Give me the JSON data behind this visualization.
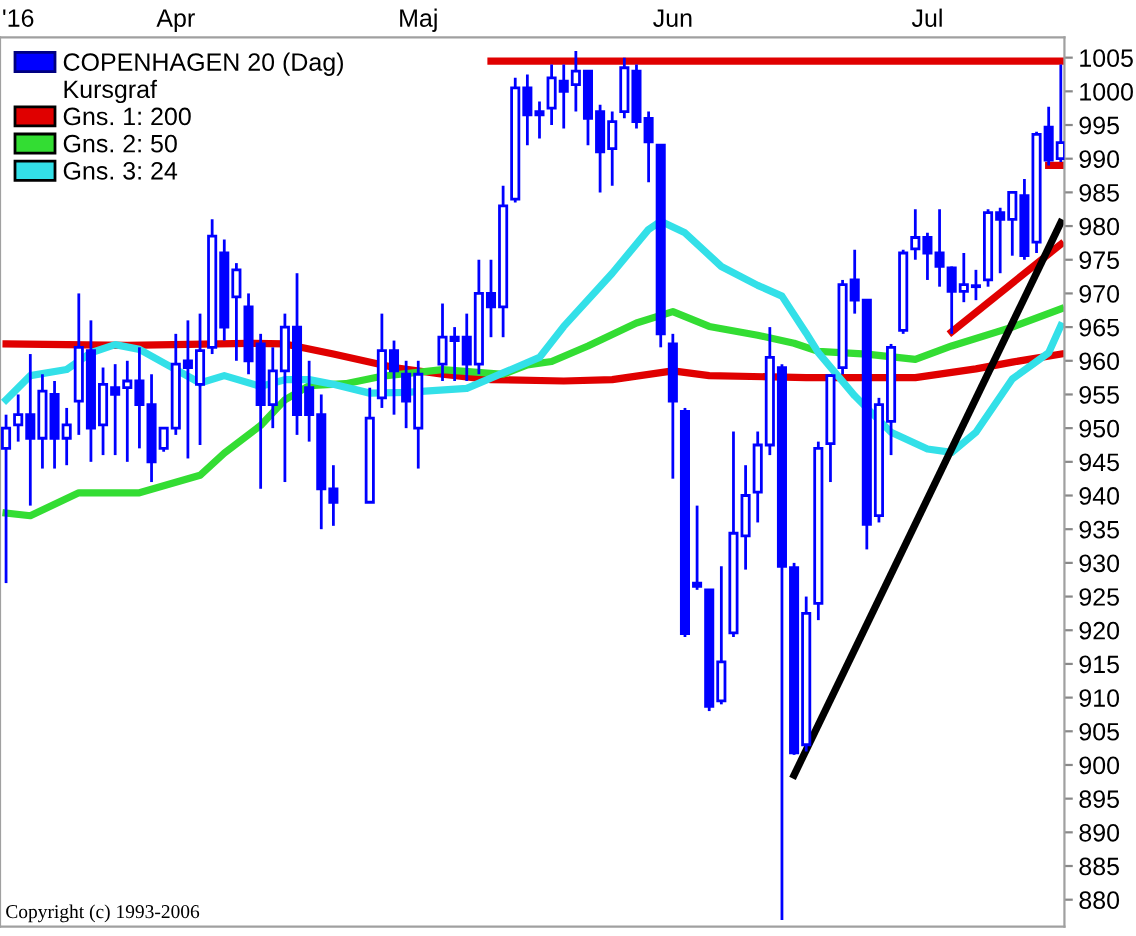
{
  "chart_data": {
    "type": "candlestick",
    "annotations": [
      "Kursgraf",
      "Copyright (c) 1993-2006"
    ],
    "categories": [
      null,
      "'16",
      null,
      null,
      null,
      null,
      null,
      null,
      null,
      null,
      null,
      null,
      null,
      null,
      "Apr",
      null,
      null,
      null,
      null,
      null,
      null,
      null,
      null,
      null,
      null,
      null,
      null,
      null,
      null,
      null,
      null,
      null,
      null,
      null,
      "Maj",
      null,
      null,
      null,
      null,
      null,
      null,
      null,
      null,
      null,
      null,
      null,
      null,
      null,
      null,
      null,
      null,
      null,
      null,
      null,
      null,
      "Jun",
      null,
      null,
      null,
      null,
      null,
      null,
      null,
      null,
      null,
      null,
      null,
      null,
      null,
      null,
      null,
      null,
      null,
      null,
      null,
      null,
      "Jul",
      null,
      null,
      null,
      null,
      null,
      null,
      null,
      null,
      null,
      null,
      null
    ],
    "ylim": [
      876,
      1008
    ],
    "yticks": [
      880,
      885,
      890,
      895,
      900,
      905,
      910,
      915,
      920,
      925,
      930,
      935,
      940,
      945,
      950,
      955,
      960,
      965,
      970,
      975,
      980,
      985,
      990,
      995,
      1000,
      1005
    ],
    "legend": "top left",
    "grid": false,
    "series": [
      {
        "type": "candlestick",
        "name": "COPENHAGEN 20 (Dag)",
        "color": "#0000ff",
        "ohlc": [
          [
            947,
            952,
            927,
            950
          ],
          [
            950.5,
            955,
            948,
            952
          ],
          [
            952,
            961,
            938.5,
            948.5
          ],
          [
            948.5,
            958,
            944,
            955.5
          ],
          [
            955,
            957,
            944,
            948.5
          ],
          [
            948.5,
            953,
            944.5,
            950.5
          ],
          [
            954,
            970,
            949,
            962
          ],
          [
            961.5,
            966,
            945,
            950
          ],
          [
            950.5,
            959,
            946,
            956.5
          ],
          [
            956,
            959.5,
            946,
            955
          ],
          [
            956,
            960,
            945,
            957
          ],
          [
            957,
            962,
            947,
            953.5
          ],
          [
            953.5,
            958,
            942,
            945
          ],
          [
            947,
            950,
            946.5,
            950
          ],
          [
            950,
            964,
            949,
            959.5
          ],
          [
            960,
            966,
            945.5,
            959
          ],
          [
            956.5,
            967,
            947.5,
            961.5
          ],
          [
            962,
            981,
            961,
            978.5
          ],
          [
            976,
            978,
            963,
            965
          ],
          [
            969.5,
            974.5,
            960,
            973.5
          ],
          [
            968,
            970,
            958,
            960
          ],
          [
            962.5,
            964,
            941,
            953.5
          ],
          [
            953.5,
            962,
            950,
            958.5
          ],
          [
            958.5,
            967,
            942,
            965
          ],
          [
            965,
            973,
            949,
            952
          ],
          [
            956,
            960,
            948,
            952
          ],
          [
            952,
            955,
            935,
            941
          ],
          [
            941,
            944.5,
            935.5,
            939
          ],
          null,
          null,
          [
            939,
            956,
            939,
            951.5
          ],
          [
            954.5,
            967,
            953,
            961.5
          ],
          [
            961.5,
            963,
            952,
            958.5
          ],
          [
            958,
            960,
            950,
            954
          ],
          [
            950,
            960,
            944,
            958
          ],
          null,
          [
            959.5,
            968.5,
            957,
            963.5
          ],
          [
            963.5,
            965,
            957,
            963
          ],
          [
            963.5,
            967,
            957,
            959.5
          ],
          [
            959.5,
            975,
            958,
            970
          ],
          [
            970,
            975,
            963.5,
            968
          ],
          [
            968,
            986,
            963.5,
            983
          ],
          [
            984,
            1002,
            983.5,
            1000.5
          ],
          [
            1000.5,
            1002.5,
            992,
            996.5
          ],
          [
            997,
            998.5,
            993,
            996.5
          ],
          [
            997.5,
            1004,
            995,
            1002
          ],
          [
            1001.5,
            1004,
            994.5,
            1000
          ],
          [
            1001,
            1006,
            997,
            1003
          ],
          [
            1003,
            1003,
            992,
            996
          ],
          [
            997,
            998,
            985,
            991
          ],
          [
            991.5,
            997,
            986,
            995.5
          ],
          [
            997,
            1005,
            996,
            1003.5
          ],
          [
            1003,
            1004,
            994.5,
            995.5
          ],
          [
            996,
            997,
            986.5,
            992.5
          ],
          [
            992,
            992,
            962,
            964
          ],
          [
            962.5,
            964,
            942.5,
            954
          ],
          [
            952.5,
            953,
            919,
            919.5
          ],
          [
            927,
            938.5,
            926,
            926.5
          ],
          [
            926,
            926,
            908,
            908.7
          ],
          [
            909.5,
            929.5,
            909,
            915.3
          ],
          [
            919.6,
            949.5,
            919,
            934.4
          ],
          [
            934,
            944.5,
            929,
            940
          ],
          [
            940.5,
            949.5,
            936,
            947.5
          ],
          [
            947.5,
            965,
            946,
            960.5
          ],
          [
            959,
            959.5,
            877,
            929.5
          ],
          [
            929.3,
            930,
            901.5,
            901.8
          ],
          [
            903,
            925,
            902,
            922.5
          ],
          [
            924,
            948,
            921.5,
            947
          ],
          [
            947.7,
            958,
            942,
            957.8
          ],
          [
            959,
            972,
            958,
            971.3
          ],
          [
            972,
            976.5,
            967,
            969
          ],
          [
            969,
            969,
            932,
            935.7
          ],
          [
            937,
            954.5,
            936,
            953.5
          ],
          [
            951,
            962.5,
            946,
            962
          ],
          [
            964.5,
            976.5,
            964,
            976
          ],
          [
            976.6,
            982.5,
            975,
            978.3
          ],
          [
            978.3,
            979,
            972,
            976
          ],
          [
            976,
            982.5,
            971,
            974
          ],
          [
            973.8,
            974,
            964,
            970.3
          ],
          [
            970.3,
            976,
            968.7,
            971.3
          ],
          [
            971,
            973.5,
            969,
            971
          ],
          [
            972,
            982.5,
            971,
            982
          ],
          [
            982,
            982.7,
            973,
            981
          ],
          [
            981,
            985,
            975.6,
            985
          ],
          [
            984.5,
            987,
            975,
            975.6
          ],
          [
            977.6,
            994,
            976,
            993.6
          ],
          [
            994.7,
            997.7,
            989,
            989.8
          ],
          [
            990,
            1004,
            989.5,
            992.4
          ]
        ]
      },
      {
        "type": "line",
        "name": "Gns. 1: 200",
        "color": "#e00000",
        "values": [
          962.5,
          null,
          null,
          null,
          null,
          null,
          null,
          null,
          null,
          null,
          962.3,
          null,
          null,
          null,
          null,
          null,
          null,
          null,
          null,
          null,
          962.6,
          null,
          null,
          962.5,
          null,
          null,
          null,
          961,
          null,
          null,
          null,
          null,
          959,
          null,
          null,
          null,
          958,
          null,
          null,
          null,
          957.2,
          null,
          null,
          null,
          null,
          null,
          957,
          null,
          null,
          null,
          957.2,
          null,
          null,
          null,
          null,
          958.5,
          null,
          null,
          957.8,
          null,
          null,
          null,
          null,
          null,
          null,
          null,
          957.5,
          null,
          null,
          null,
          null,
          null,
          null,
          null,
          null,
          957.5,
          null,
          null,
          null,
          null,
          958.8,
          null,
          null,
          959.8,
          null,
          null,
          null,
          961
        ]
      },
      {
        "type": "line",
        "name": "Gns. 2: 50",
        "color": "#33dd33",
        "values": [
          937.4,
          null,
          937,
          null,
          null,
          null,
          940.4,
          null,
          null,
          null,
          null,
          940.4,
          null,
          null,
          null,
          null,
          943,
          null,
          946.3,
          null,
          null,
          950.4,
          null,
          954.2,
          null,
          956.3,
          null,
          null,
          956.6,
          null,
          null,
          957.7,
          null,
          null,
          null,
          null,
          958.7,
          null,
          null,
          null,
          null,
          958,
          null,
          959.4,
          null,
          959.9,
          null,
          null,
          962.2,
          null,
          null,
          null,
          965.6,
          null,
          null,
          967.3,
          null,
          null,
          965.1,
          null,
          null,
          null,
          963.8,
          null,
          null,
          962.6,
          null,
          961.4,
          null,
          null,
          null,
          961,
          null,
          null,
          null,
          960.2,
          null,
          null,
          962.2,
          null,
          null,
          null,
          null,
          965,
          null,
          null,
          null,
          967.7
        ]
      },
      {
        "type": "line",
        "name": "Gns. 3: 24",
        "color": "#33e0e8",
        "values": [
          954.2,
          null,
          957.8,
          null,
          null,
          958.7,
          null,
          961.2,
          null,
          962.4,
          null,
          961.7,
          null,
          959.7,
          null,
          957.7,
          956.7,
          null,
          957.8,
          null,
          null,
          956.2,
          null,
          957.2,
          null,
          957.2,
          null,
          956.5,
          null,
          null,
          955.2,
          null,
          null,
          955.3,
          null,
          null,
          null,
          null,
          955.9,
          null,
          null,
          958.2,
          null,
          null,
          960.5,
          null,
          965.1,
          null,
          null,
          null,
          973,
          null,
          null,
          979.5,
          980.7,
          null,
          979,
          null,
          null,
          974,
          null,
          null,
          971.2,
          null,
          969.6,
          null,
          964.1,
          961.2,
          null,
          null,
          954.8,
          null,
          null,
          949.4,
          null,
          null,
          946.9,
          null,
          946.4,
          null,
          949.4,
          null,
          null,
          957.3,
          null,
          null,
          961.2,
          965.2
        ]
      },
      {
        "type": "line",
        "color": "#e00000",
        "values": [
          null,
          null,
          null,
          null,
          null,
          null,
          null,
          null,
          null,
          null,
          null,
          null,
          null,
          null,
          null,
          null,
          null,
          null,
          null,
          null,
          null,
          null,
          null,
          null,
          null,
          null,
          null,
          null,
          null,
          null,
          null,
          null,
          null,
          null,
          null,
          null,
          null,
          null,
          null,
          null,
          1004.5,
          null,
          null,
          null,
          null,
          null,
          null,
          null,
          null,
          null,
          null,
          null,
          null,
          null,
          null,
          null,
          null,
          null,
          null,
          null,
          null,
          null,
          null,
          null,
          null,
          null,
          null,
          null,
          null,
          null,
          null,
          null,
          null,
          null,
          null,
          null,
          null,
          null,
          null,
          null,
          null,
          null,
          null,
          null,
          null,
          null,
          null,
          1004.5
        ]
      },
      {
        "type": "line",
        "color": "#e00000",
        "values": [
          null,
          null,
          null,
          null,
          null,
          null,
          null,
          null,
          null,
          null,
          null,
          null,
          null,
          null,
          null,
          null,
          null,
          null,
          null,
          null,
          null,
          null,
          null,
          null,
          null,
          null,
          null,
          null,
          null,
          null,
          null,
          null,
          null,
          null,
          null,
          null,
          null,
          null,
          null,
          null,
          null,
          null,
          null,
          null,
          null,
          null,
          null,
          null,
          null,
          null,
          null,
          null,
          null,
          null,
          null,
          null,
          null,
          null,
          null,
          null,
          null,
          null,
          null,
          null,
          null,
          null,
          null,
          null,
          null,
          null,
          null,
          null,
          null,
          null,
          null,
          null,
          null,
          null,
          null,
          null,
          null,
          null,
          null,
          null,
          null,
          null,
          989,
          989
        ]
      },
      {
        "type": "line",
        "color": "#e00000",
        "values": [
          null,
          null,
          null,
          null,
          null,
          null,
          null,
          null,
          null,
          null,
          null,
          null,
          null,
          null,
          null,
          null,
          null,
          null,
          null,
          null,
          null,
          null,
          null,
          null,
          null,
          null,
          null,
          null,
          null,
          null,
          null,
          null,
          null,
          null,
          null,
          null,
          null,
          null,
          null,
          null,
          null,
          null,
          null,
          null,
          null,
          null,
          null,
          null,
          null,
          null,
          null,
          null,
          null,
          null,
          null,
          null,
          null,
          null,
          null,
          null,
          null,
          null,
          null,
          null,
          null,
          null,
          null,
          null,
          null,
          null,
          null,
          null,
          null,
          null,
          null,
          null,
          null,
          null,
          964.3,
          null,
          null,
          null,
          null,
          null,
          null,
          null,
          null,
          977.3
        ]
      },
      {
        "type": "line",
        "color": "#000000",
        "values": [
          null,
          null,
          null,
          null,
          null,
          null,
          null,
          null,
          null,
          null,
          null,
          null,
          null,
          null,
          null,
          null,
          null,
          null,
          null,
          null,
          null,
          null,
          null,
          null,
          null,
          null,
          null,
          null,
          null,
          null,
          null,
          null,
          null,
          null,
          null,
          null,
          null,
          null,
          null,
          null,
          null,
          null,
          null,
          null,
          null,
          null,
          null,
          null,
          null,
          null,
          null,
          null,
          null,
          null,
          null,
          null,
          null,
          null,
          null,
          null,
          null,
          null,
          null,
          null,
          null,
          898.5,
          null,
          null,
          null,
          null,
          null,
          null,
          null,
          null,
          null,
          null,
          null,
          null,
          null,
          null,
          null,
          null,
          null,
          null,
          null,
          null,
          null,
          980.5
        ]
      }
    ]
  }
}
